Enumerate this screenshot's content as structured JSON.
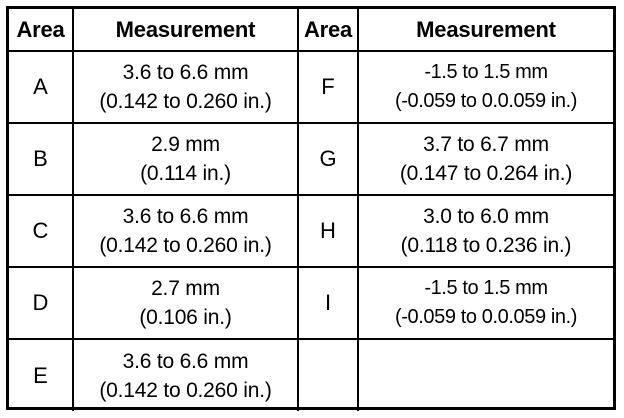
{
  "headers": {
    "area_left": "Area",
    "measurement_left": "Measurement",
    "area_right": "Area",
    "measurement_right": "Measurement"
  },
  "rows": [
    {
      "left": {
        "area": "A",
        "metric": "3.6 to 6.6 mm",
        "imperial": "(0.142 to 0.260 in.)"
      },
      "right": {
        "area": "F",
        "metric": "-1.5 to 1.5 mm",
        "imperial": "(-0.059 to 0.0.059 in.)"
      }
    },
    {
      "left": {
        "area": "B",
        "metric": "2.9 mm",
        "imperial": "(0.114 in.)"
      },
      "right": {
        "area": "G",
        "metric": "3.7 to 6.7 mm",
        "imperial": "(0.147 to 0.264 in.)"
      }
    },
    {
      "left": {
        "area": "C",
        "metric": "3.6 to 6.6 mm",
        "imperial": "(0.142 to 0.260 in.)"
      },
      "right": {
        "area": "H",
        "metric": "3.0 to 6.0 mm",
        "imperial": "(0.118 to 0.236 in.)"
      }
    },
    {
      "left": {
        "area": "D",
        "metric": "2.7 mm",
        "imperial": "(0.106 in.)"
      },
      "right": {
        "area": "I",
        "metric": "-1.5 to 1.5 mm",
        "imperial": "(-0.059 to 0.0.059 in.)"
      }
    },
    {
      "left": {
        "area": "E",
        "metric": "3.6 to 6.6 mm",
        "imperial": "(0.142 to 0.260 in.)"
      },
      "right": {
        "area": "",
        "metric": "",
        "imperial": ""
      }
    }
  ]
}
